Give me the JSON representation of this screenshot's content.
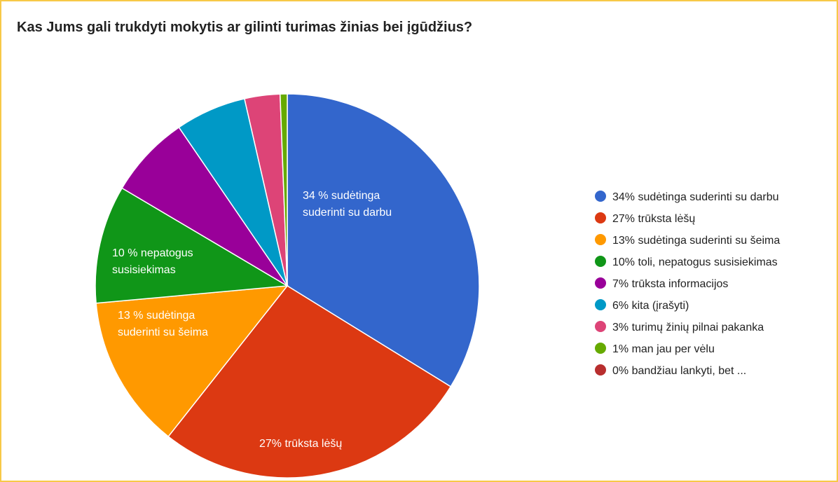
{
  "chart_data": {
    "type": "pie",
    "title": "Kas Jums gali trukdyti mokytis ar gilinti turimas žinias bei įgūdžius?",
    "legend_position": "right",
    "slices": [
      {
        "legend": "34% sudėtinga suderinti su darbu",
        "value": 34,
        "color": "#3366cc",
        "label_lines": [
          "34 % sudėtinga",
          "suderinti su darbu"
        ]
      },
      {
        "legend": "27% trūksta lėšų",
        "value": 27,
        "color": "#dc3912",
        "label_lines": [
          "27% trūksta lėšų"
        ]
      },
      {
        "legend": "13% sudėtinga suderinti su šeima",
        "value": 13,
        "color": "#ff9900",
        "label_lines": [
          "13 % sudėtinga",
          "suderinti su šeima"
        ]
      },
      {
        "legend": "10% toli, nepatogus susisiekimas",
        "value": 10,
        "color": "#109618",
        "label_lines": [
          "10 % nepatogus",
          "susisiekimas"
        ]
      },
      {
        "legend": "7% trūksta informacijos",
        "value": 7,
        "color": "#990099",
        "label_lines": []
      },
      {
        "legend": "6% kita (įrašyti)",
        "value": 6,
        "color": "#0099c6",
        "label_lines": []
      },
      {
        "legend": "3% turimų žinių pilnai pakanka",
        "value": 3,
        "color": "#dd4477",
        "label_lines": []
      },
      {
        "legend": "1% man jau per vėlu",
        "value": 0.6,
        "color": "#66aa00",
        "label_lines": []
      },
      {
        "legend": "0% bandžiau lankyti, bet ...",
        "value": 0,
        "color": "#b82e2e",
        "label_lines": []
      }
    ]
  }
}
